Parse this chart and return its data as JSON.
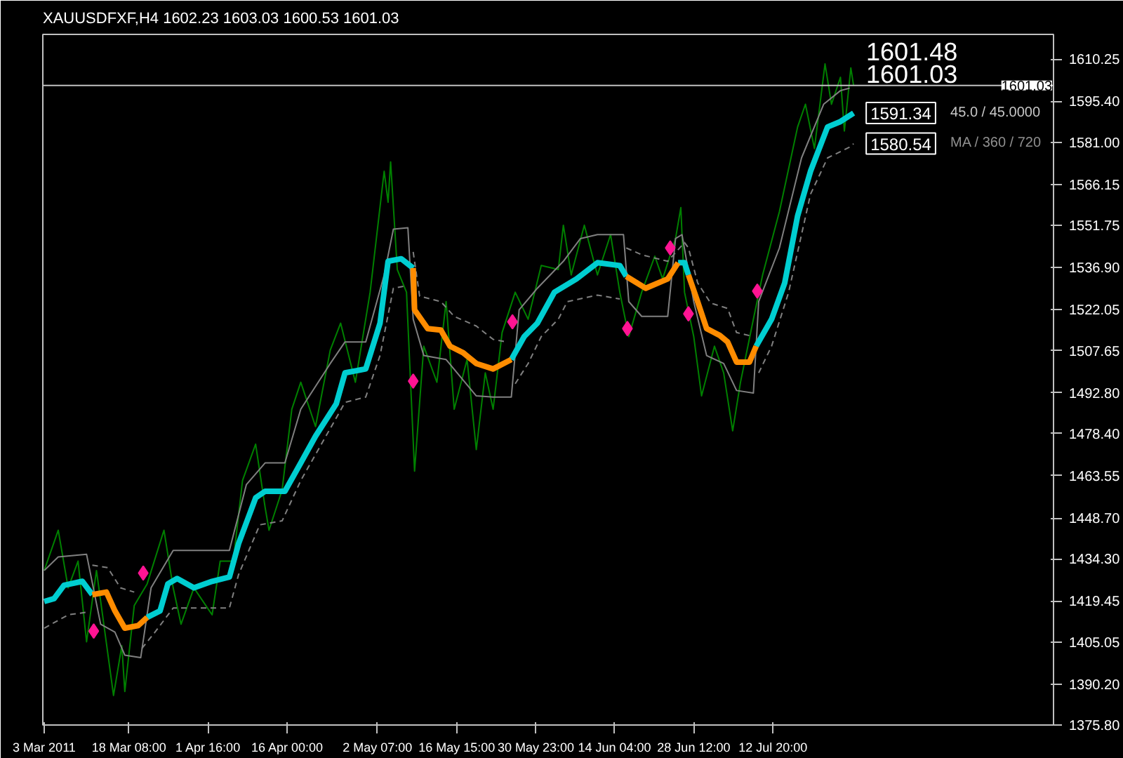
{
  "chart_data": {
    "type": "line",
    "title": "XAUUSDFXF,H4  1602.23 1603.03 1600.53 1601.03",
    "xlim": [
      "2011-03-02T18:00",
      "2011-09-01T14:00"
    ],
    "xticks": [
      {
        "value": "2011-03-03T00:00",
        "label": "3 Mar 2011"
      },
      {
        "value": "2011-03-18T08:00",
        "label": "18 Mar 08:00"
      },
      {
        "value": "2011-04-01T16:00",
        "label": "1 Apr 16:00"
      },
      {
        "value": "2011-04-16T00:00",
        "label": "16 Apr 00:00"
      },
      {
        "value": "2011-05-02T07:00",
        "label": "2 May 07:00"
      },
      {
        "value": "2011-05-16T15:00",
        "label": "16 May 15:00"
      },
      {
        "value": "2011-05-30T23:00",
        "label": "30 May 23:00"
      },
      {
        "value": "2011-06-14T04:00",
        "label": "14 Jun 04:00"
      },
      {
        "value": "2011-06-28T12:00",
        "label": "28 Jun 12:00"
      },
      {
        "value": "2011-07-12T20:00",
        "label": "12 Jul 20:00"
      }
    ],
    "ylim": [
      1375.8,
      1619
    ],
    "yticks": [
      {
        "value": 1375.8,
        "label": "1375.80"
      },
      {
        "value": 1390.2,
        "label": "1390.20"
      },
      {
        "value": 1405.05,
        "label": "1405.05"
      },
      {
        "value": 1419.45,
        "label": "1419.45"
      },
      {
        "value": 1434.3,
        "label": "1434.30"
      },
      {
        "value": 1448.7,
        "label": "1448.70"
      },
      {
        "value": 1463.55,
        "label": "1463.55"
      },
      {
        "value": 1478.4,
        "label": "1478.40"
      },
      {
        "value": 1492.8,
        "label": "1492.80"
      },
      {
        "value": 1507.65,
        "label": "1507.65"
      },
      {
        "value": 1522.05,
        "label": "1522.05"
      },
      {
        "value": 1536.9,
        "label": "1536.90"
      },
      {
        "value": 1551.75,
        "label": "1551.75"
      },
      {
        "value": 1566.15,
        "label": "1566.15"
      },
      {
        "value": 1581.0,
        "label": "1581.00"
      },
      {
        "value": 1595.4,
        "label": "1595.40"
      },
      {
        "value": 1610.25,
        "label": "1610.25"
      }
    ],
    "ref_lines": [
      {
        "axis": "y",
        "value": 1601.03,
        "label": "1601.03",
        "color": "#c0c0c0"
      }
    ],
    "annotations": [
      "1601.48",
      "1601.03",
      {
        "text": "1591.34",
        "x": "2011-07-27T10:00",
        "y": 1591.34
      },
      "45.0 / 45.0000",
      {
        "text": "1580.54",
        "x": "2011-07-27T10:00",
        "y": 1580.54
      },
      "MA / 360 / 720"
    ],
    "series": [
      {
        "color": "#008000",
        "x": [
          "2011-03-03T00:00",
          "2011-03-05T13:00",
          "2011-03-07T08:00",
          "2011-03-09T03:00",
          "2011-03-10T16:00",
          "2011-03-12T11:00",
          "2011-03-15T13:00",
          "2011-03-17T01:00",
          "2011-03-17T14:00",
          "2011-03-19T07:00",
          "2011-03-21T15:00",
          "2011-03-24T16:00",
          "2011-03-26T08:00",
          "2011-03-27T18:00",
          "2011-03-30T02:00",
          "2011-04-02T09:00",
          "2011-04-03T20:00",
          "2011-04-06T05:00",
          "2011-04-07T21:00",
          "2011-04-10T06:00",
          "2011-04-11T23:00",
          "2011-04-12T16:00",
          "2011-04-15T01:00",
          "2011-04-16T19:00",
          "2011-04-18T10:00",
          "2011-04-21T02:00",
          "2011-04-23T18:00",
          "2011-04-25T15:00",
          "2011-04-28T07:00",
          "2011-04-30T23:00",
          "2011-05-03T12:00",
          "2011-05-04T05:00",
          "2011-05-04T16:00",
          "2011-05-05T21:00",
          "2011-05-07T13:00",
          "2011-05-09T00:00",
          "2011-05-10T16:00",
          "2011-05-13T01:00",
          "2011-05-14T17:00",
          "2011-05-16T04:00",
          "2011-05-18T12:00",
          "2011-05-20T04:00",
          "2011-05-21T19:00",
          "2011-05-23T05:00",
          "2011-05-24T20:00",
          "2011-05-27T05:00",
          "2011-05-29T13:00",
          "2011-05-31T22:00",
          "2011-06-04T00:00",
          "2011-06-04T22:00",
          "2011-06-06T08:00",
          "2011-06-08T17:00",
          "2011-06-11T02:00",
          "2011-06-13T11:00",
          "2011-06-15T03:00",
          "2011-06-16T18:00",
          "2011-06-19T02:00",
          "2011-06-21T11:00",
          "2011-06-22T21:00",
          "2011-06-25T05:00",
          "2011-06-26T04:00",
          "2011-06-26T20:00",
          "2011-06-28T12:00",
          "2011-06-29T22:00",
          "2011-07-02T06:00",
          "2011-07-03T22:00",
          "2011-07-05T13:00",
          "2011-07-06T23:00",
          "2011-07-09T07:00",
          "2011-07-10T23:00",
          "2011-07-14T00:00",
          "2011-07-17T07:00",
          "2011-07-18T17:00",
          "2011-07-20T08:00",
          "2011-07-22T06:00",
          "2011-07-23T10:00",
          "2011-07-25T01:00",
          "2011-07-25T18:00",
          "2011-07-26T22:00",
          "2011-07-27T10:00"
        ],
        "values": [
          1430.2,
          1444.4,
          1424.1,
          1433.5,
          1405.1,
          1430.2,
          1386.2,
          1403.7,
          1387.6,
          1417.9,
          1425.5,
          1444.4,
          1424.1,
          1411.3,
          1424.1,
          1414.6,
          1433.5,
          1433.5,
          1461.9,
          1474.7,
          1452.5,
          1444.4,
          1458.6,
          1487.0,
          1496.5,
          1480.9,
          1507.8,
          1517.3,
          1496.5,
          1528.2,
          1570.8,
          1559.9,
          1574.1,
          1536.2,
          1528.2,
          1465.2,
          1509.2,
          1496.5,
          1524.9,
          1487.0,
          1504.5,
          1472.8,
          1499.8,
          1487.0,
          1514.0,
          1528.2,
          1518.7,
          1537.6,
          1536.2,
          1551.8,
          1534.3,
          1551.8,
          1534.3,
          1548.5,
          1528.2,
          1512.6,
          1528.2,
          1540.9,
          1532.9,
          1547.1,
          1558.0,
          1528.2,
          1512.6,
          1491.7,
          1509.2,
          1499.8,
          1479.4,
          1496.5,
          1518.7,
          1534.3,
          1556.6,
          1586.4,
          1594.4,
          1578.8,
          1608.6,
          1594.4,
          1603.9,
          1585.0,
          1607.2,
          1601.0
        ]
      },
      {
        "color": "#808080",
        "x": [
          "2011-03-03T00:00",
          "2011-03-05T13:00",
          "2011-03-10T16:00",
          "2011-03-13T05:00",
          "2011-03-15T19:00",
          "2011-03-17T14:00",
          "2011-03-20T11:00",
          "2011-03-22T08:00",
          "2011-03-26T08:00",
          "2011-04-05T12:00",
          "2011-04-08T14:00",
          "2011-04-11T23:00",
          "2011-04-15T13:00",
          "2011-04-18T10:00",
          "2011-04-23T18:00",
          "2011-04-26T10:00",
          "2011-04-30T04:00",
          "2011-05-03T12:00",
          "2011-05-05T04:00",
          "2011-05-07T19:00",
          "2011-05-08T18:00",
          "2011-05-10T16:00",
          "2011-05-14T17:00",
          "2011-05-20T04:00",
          "2011-05-23T05:00",
          "2011-05-26T12:00",
          "2011-05-27T22:00",
          "2011-05-31T05:00",
          "2011-06-04T22:00",
          "2011-06-08T00:00",
          "2011-06-11T02:00",
          "2011-06-15T19:00",
          "2011-06-16T18:00",
          "2011-06-19T02:00",
          "2011-06-23T19:00",
          "2011-06-25T05:00",
          "2011-06-26T09:00",
          "2011-06-28T12:00",
          "2011-06-30T20:00",
          "2011-07-03T22:00",
          "2011-07-06T06:00",
          "2011-07-09T07:00",
          "2011-07-10T06:00",
          "2011-07-14T00:00",
          "2011-07-18T00:00",
          "2011-07-22T00:00",
          "2011-07-25T01:00",
          "2011-07-26T17:00"
        ],
        "values": [
          1430.2,
          1435.0,
          1435.9,
          1411.3,
          1408.5,
          1400.4,
          1399.5,
          1424.1,
          1437.3,
          1437.3,
          1460.5,
          1468.1,
          1468.1,
          1487.0,
          1503.1,
          1510.7,
          1510.7,
          1534.3,
          1550.4,
          1550.9,
          1518.7,
          1505.9,
          1504.5,
          1491.7,
          1491.3,
          1491.3,
          1522.0,
          1529.6,
          1539.1,
          1547.1,
          1548.5,
          1548.5,
          1524.9,
          1519.7,
          1519.7,
          1547.1,
          1548.5,
          1524.9,
          1505.9,
          1503.1,
          1493.6,
          1492.7,
          1524.9,
          1543.8,
          1575.5,
          1594.4,
          1599.2,
          1600.1
        ]
      },
      {
        "color": "#808080",
        "line_style": "dashed",
        "x": [
          "2011-03-03T00:00",
          "2011-03-07T08:00",
          "2011-03-10T16:00",
          "2011-03-11T04:00",
          "2011-03-11T17:00",
          "2011-03-14T12:00",
          "2011-03-16T19:00",
          "2011-03-19T07:00",
          "2011-03-20T00:00",
          "2011-03-20T16:00",
          "2011-03-23T01:00",
          "2011-03-26T08:00",
          "2011-04-05T12:00",
          "2011-04-07T04:00",
          "2011-04-11T00:00",
          "2011-04-15T01:00",
          "2011-04-18T10:00",
          "2011-04-22T23:00",
          "2011-04-26T10:00",
          "2011-04-30T04:00",
          "2011-05-02T18:00",
          "2011-05-05T04:00",
          "2011-05-07T13:00",
          "2011-05-08T06:00",
          "2011-05-08T18:00",
          "2011-05-09T22:00",
          "2011-05-13T18:00",
          "2011-05-16T04:00",
          "2011-05-20T04:00",
          "2011-05-23T05:00",
          "2011-05-25T13:00",
          "2011-05-26T12:00",
          "2011-05-27T05:00",
          "2011-05-29T13:00",
          "2011-05-31T22:00",
          "2011-06-04T00:00",
          "2011-06-05T15:00",
          "2011-06-11T02:00",
          "2011-06-15T03:00",
          "2011-06-15T19:00",
          "2011-06-16T07:00",
          "2011-06-19T02:00",
          "2011-06-23T19:00",
          "2011-06-26T20:00",
          "2011-06-27T13:00",
          "2011-06-29T05:00",
          "2011-07-01T13:00",
          "2011-07-04T15:00",
          "2011-07-06T06:00",
          "2011-07-09T07:00",
          "2011-07-09T19:00",
          "2011-07-10T06:00",
          "2011-07-12T14:00",
          "2011-07-15T16:00",
          "2011-07-19T15:00",
          "2011-07-22T17:00",
          "2011-07-26T17:00",
          "2011-07-27T10:00"
        ],
        "values": [
          1409.9,
          1414.6,
          1415.5,
          null,
          1432.1,
          1431.2,
          1424.1,
          1422.6,
          null,
          1402.8,
          1408.5,
          1417.0,
          1417.0,
          1428.8,
          1446.3,
          1447.7,
          1461.9,
          1477.5,
          1489.4,
          1491.3,
          1505.9,
          1529.6,
          1530.5,
          null,
          1542.4,
          1526.8,
          1524.9,
          1519.7,
          1516.3,
          1511.6,
          1510.7,
          null,
          1496.0,
          1503.1,
          1512.6,
          1518.7,
          1524.9,
          1527.2,
          1525.8,
          null,
          1543.8,
          1541.4,
          1539.1,
          1545.7,
          1543.8,
          1531.5,
          1524.4,
          1522.5,
          1514.0,
          1512.6,
          null,
          1499.8,
          1509.2,
          1528.2,
          1562.7,
          1575.5,
          1579.3,
          1580.5
        ]
      },
      {
        "color": "#00ced1",
        "x": [
          "2011-03-03T00:00",
          "2011-03-04T19:00",
          "2011-03-06T14:00",
          "2011-03-09T22:00",
          "2011-03-11T17:00",
          "2011-03-12T11:00",
          "2011-03-21T15:00",
          "2011-03-23T23:00",
          "2011-03-25T09:00",
          "2011-03-27T01:00",
          "2011-03-30T02:00",
          "2011-04-02T09:00",
          "2011-04-05T12:00",
          "2011-04-07T04:00",
          "2011-04-10T06:00",
          "2011-04-11T23:00",
          "2011-04-15T13:00",
          "2011-04-18T10:00",
          "2011-04-21T02:00",
          "2011-04-24T20:00",
          "2011-04-26T10:00",
          "2011-04-30T04:00",
          "2011-05-02T18:00",
          "2011-05-04T05:00",
          "2011-05-06T14:00",
          "2011-05-08T18:00",
          "2011-05-15T10:00",
          "2011-05-26T12:00",
          "2011-05-28T20:00",
          "2011-05-31T05:00",
          "2011-06-03T07:00",
          "2011-06-07T07:00",
          "2011-06-11T02:00",
          "2011-06-15T03:00",
          "2011-06-16T07:00",
          "2011-06-19T19:00",
          "2011-06-25T16:00",
          "2011-06-26T20:00",
          "2011-06-27T13:00",
          "2011-07-01T13:00",
          "2011-07-09T19:00",
          "2011-07-12T14:00",
          "2011-07-14T23:00",
          "2011-07-17T07:00",
          "2011-07-19T15:00",
          "2011-07-22T17:00",
          "2011-07-25T01:00",
          "2011-07-27T10:00"
        ],
        "values": [
          1419.3,
          1420.3,
          1425.0,
          1426.4,
          1421.7,
          null,
          1413.7,
          1416.0,
          1425.5,
          1427.4,
          1424.1,
          1426.4,
          1427.9,
          1439.7,
          1455.8,
          1458.1,
          1458.1,
          1468.1,
          1477.5,
          1488.9,
          1499.8,
          1501.2,
          1517.3,
          1539.1,
          1540.0,
          1536.7,
          null,
          1504.5,
          1512.6,
          1517.3,
          1528.2,
          1532.9,
          1538.6,
          1537.6,
          1533.8,
          null,
          1538.6,
          1538.6,
          1534.3,
          null,
          1509.2,
          1518.7,
          1531.5,
          1555.1,
          1570.8,
          1586.4,
          1588.3,
          1591.3
        ]
      },
      {
        "color": "#ff8c00",
        "x": [
          "2011-03-11T17:00",
          "2011-03-14T06:00",
          "2011-03-15T19:00",
          "2011-03-17T14:00",
          "2011-03-20T00:00",
          "2011-03-21T15:00",
          "2011-03-27T01:00",
          "2011-05-08T18:00",
          "2011-05-09T00:00",
          "2011-05-11T09:00",
          "2011-05-13T18:00",
          "2011-05-15T10:00",
          "2011-05-17T19:00",
          "2011-05-20T04:00",
          "2011-05-23T05:00",
          "2011-05-26T12:00",
          "2011-05-29T13:00",
          "2011-06-16T07:00",
          "2011-06-19T19:00",
          "2011-06-23T19:00",
          "2011-06-25T16:00",
          "2011-06-26T09:00",
          "2011-06-27T13:00",
          "2011-06-29T05:00",
          "2011-06-30T20:00",
          "2011-07-03T05:00",
          "2011-07-04T15:00",
          "2011-07-06T06:00",
          "2011-07-08T14:00",
          "2011-07-09T19:00"
        ],
        "values": [
          1421.7,
          1422.6,
          1416.0,
          1409.9,
          1410.8,
          1413.7,
          null,
          1536.7,
          1522.0,
          1515.4,
          1514.9,
          1509.2,
          1506.9,
          1503.1,
          1501.2,
          1504.5,
          null,
          1533.8,
          1529.6,
          1532.9,
          1538.6,
          null,
          1534.3,
          1524.9,
          1515.4,
          1513.0,
          1510.7,
          1503.6,
          1503.6,
          1509.2
        ]
      },
      {
        "type": "scatter",
        "color": "#ff1493",
        "marker": "diamond",
        "x": [
          "2011-03-11T23:00",
          "2011-03-20T22:00",
          "2011-05-08T18:00",
          "2011-05-26T17:00",
          "2011-06-16T12:00",
          "2011-06-24T06:00",
          "2011-06-27T13:00",
          "2011-07-10T00:00"
        ],
        "values": [
          1408.9,
          1429.3,
          1496.9,
          1517.8,
          1515.4,
          1543.8,
          1520.6,
          1528.6
        ]
      }
    ]
  }
}
